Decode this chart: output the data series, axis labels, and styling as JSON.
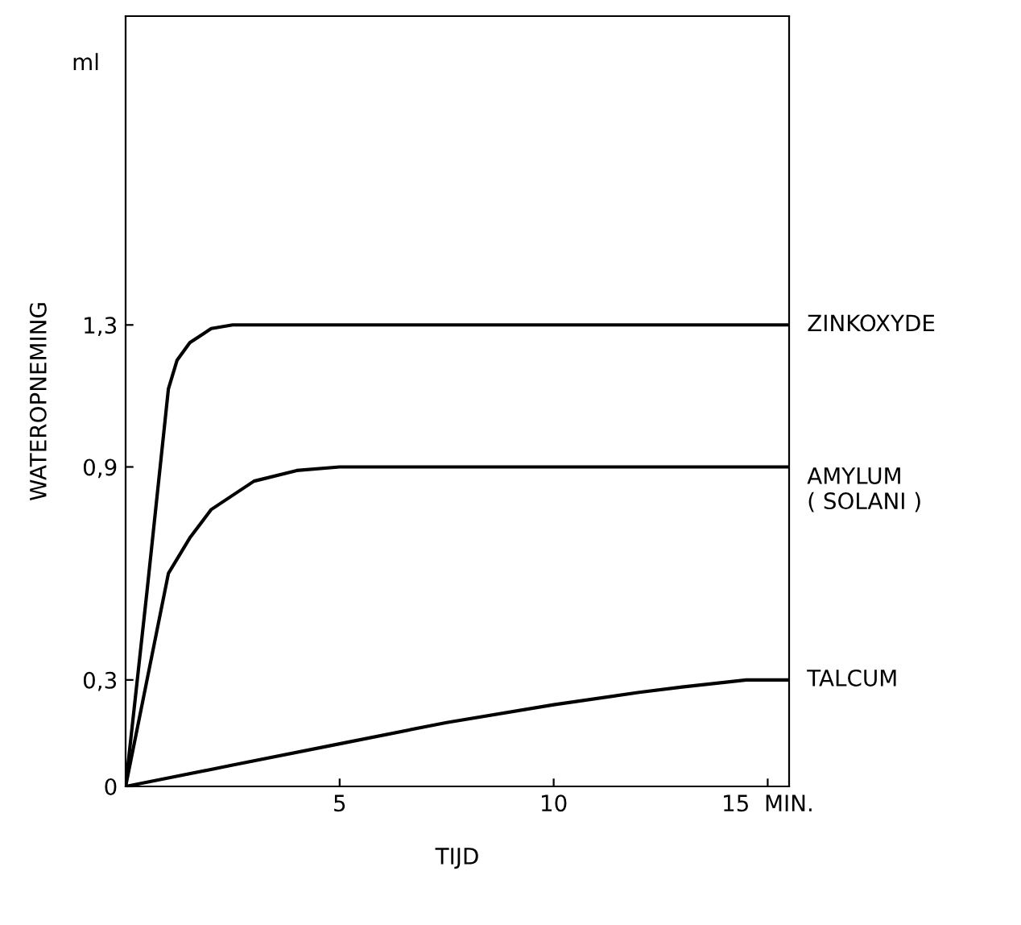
{
  "chart_data": {
    "type": "line",
    "xlabel": "TIJD",
    "ylabel": "WATEROPNEMING",
    "annotations": [
      "ml"
    ],
    "xlim": [
      0,
      15.5
    ],
    "ylim": [
      0,
      2.17
    ],
    "xticks": [
      5,
      10,
      {
        "value": 15,
        "label": "15  MIN."
      }
    ],
    "yticks": [
      {
        "value": 0,
        "label": "0"
      },
      {
        "value": 0.3,
        "label": "0,3"
      },
      {
        "value": 0.9,
        "label": "0,9"
      },
      {
        "value": 1.3,
        "label": "1,3"
      }
    ],
    "grid": false,
    "legend": false,
    "marker": "none",
    "line_style": "solid",
    "series": [
      {
        "name": "ZINKOXYDE",
        "color": "#000000",
        "x": [
          0,
          0.5,
          1.0,
          1.2,
          1.5,
          2,
          2.5,
          3,
          15.5
        ],
        "values": [
          0,
          0.55,
          1.12,
          1.2,
          1.25,
          1.29,
          1.3,
          1.3,
          1.3
        ]
      },
      {
        "name": "AMYLUM\n( SOLANI )",
        "color": "#000000",
        "x": [
          0,
          0.5,
          1,
          1.5,
          2,
          3,
          4,
          5,
          15.5
        ],
        "values": [
          0,
          0.3,
          0.6,
          0.7,
          0.78,
          0.86,
          0.89,
          0.9,
          0.9
        ]
      },
      {
        "name": "TALCUM",
        "color": "#000000",
        "x": [
          0,
          2.5,
          5,
          7.5,
          10,
          12,
          13,
          14.5,
          15.5
        ],
        "values": [
          0,
          0.06,
          0.12,
          0.18,
          0.23,
          0.265,
          0.28,
          0.3,
          0.3
        ]
      }
    ]
  }
}
